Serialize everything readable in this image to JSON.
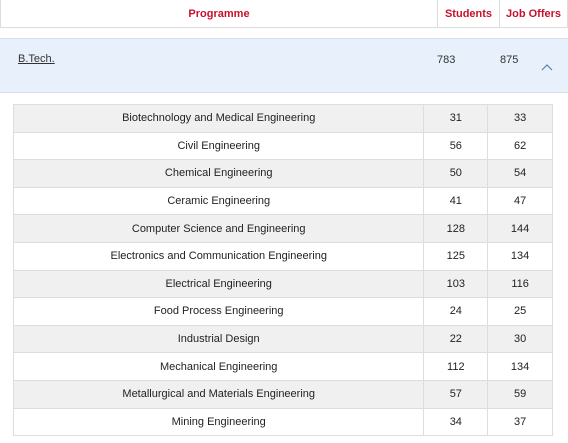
{
  "header": {
    "programme": "Programme",
    "students": "Students",
    "job_offers": "Job Offers"
  },
  "summary": {
    "programme": "B.Tech.",
    "students": "783",
    "job_offers": "875",
    "expand_icon": "chevron-up-icon"
  },
  "rows": [
    {
      "name": "Biotechnology and Medical Engineering",
      "students": "31",
      "job_offers": "33"
    },
    {
      "name": "Civil Engineering",
      "students": "56",
      "job_offers": "62"
    },
    {
      "name": "Chemical Engineering",
      "students": "50",
      "job_offers": "54"
    },
    {
      "name": "Ceramic Engineering",
      "students": "41",
      "job_offers": "47"
    },
    {
      "name": "Computer Science and Engineering",
      "students": "128",
      "job_offers": "144"
    },
    {
      "name": "Electronics and Communication Engineering",
      "students": "125",
      "job_offers": "134"
    },
    {
      "name": "Electrical Engineering",
      "students": "103",
      "job_offers": "116"
    },
    {
      "name": "Food Process Engineering",
      "students": "24",
      "job_offers": "25"
    },
    {
      "name": "Industrial Design",
      "students": "22",
      "job_offers": "30"
    },
    {
      "name": "Mechanical Engineering",
      "students": "112",
      "job_offers": "134"
    },
    {
      "name": "Metallurgical and Materials Engineering",
      "students": "57",
      "job_offers": "59"
    },
    {
      "name": "Mining Engineering",
      "students": "34",
      "job_offers": "37"
    }
  ],
  "colors": {
    "header_text": "#c8102e",
    "accordion_bg": "#e8f0fb",
    "stripe": "#f0f0f0"
  }
}
